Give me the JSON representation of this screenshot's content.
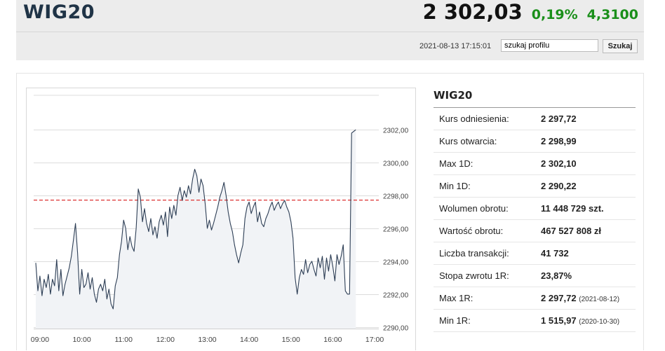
{
  "header": {
    "title": "WIG20",
    "price": "2 302,03",
    "change_pct": "0,19%",
    "change_abs": "4,3100",
    "datetime": "2021-08-13 17:15:01",
    "search_value": "szukaj profilu",
    "search_button": "Szukaj",
    "colors": {
      "positive": "#1a8f1a",
      "title": "#1f3346"
    }
  },
  "info": {
    "title": "WIG20",
    "rows": [
      {
        "label": "Kurs odniesienia:",
        "value": "2 297,72",
        "date": ""
      },
      {
        "label": "Kurs otwarcia:",
        "value": "2 298,99",
        "date": ""
      },
      {
        "label": "Max 1D:",
        "value": "2 302,10",
        "date": ""
      },
      {
        "label": "Min 1D:",
        "value": "2 290,22",
        "date": ""
      },
      {
        "label": "Wolumen obrotu:",
        "value": "11 448 729 szt.",
        "date": ""
      },
      {
        "label": "Wartość obrotu:",
        "value": "467 527 808 zł",
        "date": ""
      },
      {
        "label": "Liczba transakcji:",
        "value": "41 732",
        "date": ""
      },
      {
        "label": "Stopa zwrotu 1R:",
        "value": "23,87%",
        "date": ""
      },
      {
        "label": "Max 1R:",
        "value": "2 297,72",
        "date": "(2021-08-12)"
      },
      {
        "label": "Min 1R:",
        "value": "1 515,97",
        "date": "(2020-10-30)"
      }
    ]
  },
  "chart_data": {
    "type": "line",
    "title": "",
    "xlabel": "",
    "ylabel": "",
    "grid": true,
    "x_tick_labels": [
      "09:00",
      "10:00",
      "11:00",
      "12:00",
      "13:00",
      "14:00",
      "15:00",
      "16:00",
      "17:00"
    ],
    "x_tick_hours": [
      9,
      10,
      11,
      12,
      13,
      14,
      15,
      16,
      17
    ],
    "y_tick_labels": [
      "2302,00",
      "2300,00",
      "2298,00",
      "2296,00",
      "2294,00",
      "2292,00",
      "2290,00"
    ],
    "y_tick_values": [
      2302,
      2300,
      2298,
      2296,
      2294,
      2292,
      2290
    ],
    "xlim": [
      8.85,
      17.1
    ],
    "ylim": [
      2289.9,
      2304.1
    ],
    "reference_line": {
      "value": 2297.72,
      "color": "#d33",
      "style": "dashed"
    },
    "series": [
      {
        "color": "#2d3e55",
        "fill": "#f1f3f6",
        "points": [
          [
            8.9,
            2293.9
          ],
          [
            8.95,
            2292.2
          ],
          [
            9.0,
            2293.1
          ],
          [
            9.05,
            2291.9
          ],
          [
            9.1,
            2292.9
          ],
          [
            9.15,
            2292.4
          ],
          [
            9.2,
            2293.2
          ],
          [
            9.25,
            2292.0
          ],
          [
            9.3,
            2292.9
          ],
          [
            9.35,
            2292.5
          ],
          [
            9.4,
            2294.1
          ],
          [
            9.45,
            2292.2
          ],
          [
            9.5,
            2293.5
          ],
          [
            9.55,
            2291.9
          ],
          [
            9.6,
            2292.6
          ],
          [
            9.65,
            2293.1
          ],
          [
            9.7,
            2293.6
          ],
          [
            9.75,
            2294.3
          ],
          [
            9.8,
            2295.3
          ],
          [
            9.85,
            2296.3
          ],
          [
            9.9,
            2294.5
          ],
          [
            9.95,
            2292.0
          ],
          [
            10.0,
            2293.5
          ],
          [
            10.05,
            2292.4
          ],
          [
            10.1,
            2292.6
          ],
          [
            10.15,
            2293.3
          ],
          [
            10.2,
            2292.3
          ],
          [
            10.25,
            2293.0
          ],
          [
            10.3,
            2292.0
          ],
          [
            10.35,
            2291.5
          ],
          [
            10.4,
            2292.3
          ],
          [
            10.45,
            2292.6
          ],
          [
            10.5,
            2292.2
          ],
          [
            10.55,
            2292.9
          ],
          [
            10.6,
            2291.7
          ],
          [
            10.65,
            2292.3
          ],
          [
            10.7,
            2291.4
          ],
          [
            10.75,
            2291.1
          ],
          [
            10.8,
            2292.5
          ],
          [
            10.85,
            2293.0
          ],
          [
            10.9,
            2294.4
          ],
          [
            10.95,
            2295.2
          ],
          [
            11.0,
            2296.5
          ],
          [
            11.05,
            2296.0
          ],
          [
            11.1,
            2294.7
          ],
          [
            11.15,
            2295.5
          ],
          [
            11.2,
            2294.9
          ],
          [
            11.25,
            2294.6
          ],
          [
            11.3,
            2296.0
          ],
          [
            11.35,
            2298.4
          ],
          [
            11.4,
            2297.9
          ],
          [
            11.45,
            2296.4
          ],
          [
            11.5,
            2297.2
          ],
          [
            11.55,
            2296.3
          ],
          [
            11.6,
            2295.8
          ],
          [
            11.65,
            2296.6
          ],
          [
            11.7,
            2295.6
          ],
          [
            11.75,
            2296.1
          ],
          [
            11.8,
            2295.4
          ],
          [
            11.85,
            2296.4
          ],
          [
            11.9,
            2296.8
          ],
          [
            11.95,
            2296.2
          ],
          [
            12.0,
            2297.0
          ],
          [
            12.05,
            2295.5
          ],
          [
            12.1,
            2297.3
          ],
          [
            12.15,
            2296.6
          ],
          [
            12.2,
            2297.4
          ],
          [
            12.25,
            2296.8
          ],
          [
            12.3,
            2298.0
          ],
          [
            12.35,
            2298.5
          ],
          [
            12.4,
            2297.7
          ],
          [
            12.45,
            2298.3
          ],
          [
            12.5,
            2297.9
          ],
          [
            12.55,
            2298.6
          ],
          [
            12.6,
            2298.1
          ],
          [
            12.65,
            2299.0
          ],
          [
            12.7,
            2299.6
          ],
          [
            12.75,
            2299.2
          ],
          [
            12.8,
            2298.2
          ],
          [
            12.85,
            2299.0
          ],
          [
            12.9,
            2298.6
          ],
          [
            12.95,
            2297.5
          ],
          [
            13.0,
            2296.0
          ],
          [
            13.05,
            2296.5
          ],
          [
            13.1,
            2295.9
          ],
          [
            13.15,
            2296.3
          ],
          [
            13.2,
            2296.8
          ],
          [
            13.25,
            2297.3
          ],
          [
            13.3,
            2297.9
          ],
          [
            13.35,
            2298.3
          ],
          [
            13.4,
            2298.8
          ],
          [
            13.45,
            2298.0
          ],
          [
            13.5,
            2297.0
          ],
          [
            13.55,
            2296.3
          ],
          [
            13.6,
            2295.8
          ],
          [
            13.65,
            2295.0
          ],
          [
            13.7,
            2294.4
          ],
          [
            13.75,
            2293.9
          ],
          [
            13.8,
            2294.5
          ],
          [
            13.85,
            2295.0
          ],
          [
            13.9,
            2296.6
          ],
          [
            13.95,
            2297.3
          ],
          [
            14.0,
            2297.6
          ],
          [
            14.05,
            2296.9
          ],
          [
            14.1,
            2297.3
          ],
          [
            14.15,
            2297.6
          ],
          [
            14.2,
            2296.4
          ],
          [
            14.25,
            2297.0
          ],
          [
            14.3,
            2296.3
          ],
          [
            14.35,
            2296.1
          ],
          [
            14.4,
            2296.6
          ],
          [
            14.45,
            2296.9
          ],
          [
            14.5,
            2297.3
          ],
          [
            14.55,
            2297.6
          ],
          [
            14.6,
            2297.1
          ],
          [
            14.65,
            2297.4
          ],
          [
            14.7,
            2297.6
          ],
          [
            14.75,
            2297.2
          ],
          [
            14.8,
            2297.5
          ],
          [
            14.85,
            2297.7
          ],
          [
            14.9,
            2297.3
          ],
          [
            14.95,
            2297.0
          ],
          [
            15.0,
            2296.4
          ],
          [
            15.05,
            2295.4
          ],
          [
            15.1,
            2293.0
          ],
          [
            15.15,
            2292.0
          ],
          [
            15.2,
            2293.0
          ],
          [
            15.25,
            2293.5
          ],
          [
            15.3,
            2293.2
          ],
          [
            15.35,
            2294.1
          ],
          [
            15.4,
            2293.3
          ],
          [
            15.45,
            2293.8
          ],
          [
            15.5,
            2294.0
          ],
          [
            15.55,
            2293.5
          ],
          [
            15.6,
            2293.1
          ],
          [
            15.65,
            2294.2
          ],
          [
            15.7,
            2293.6
          ],
          [
            15.75,
            2294.3
          ],
          [
            15.8,
            2292.9
          ],
          [
            15.85,
            2294.2
          ],
          [
            15.9,
            2293.4
          ],
          [
            15.95,
            2294.4
          ],
          [
            16.0,
            2293.7
          ],
          [
            16.05,
            2292.8
          ],
          [
            16.1,
            2294.4
          ],
          [
            16.15,
            2293.8
          ],
          [
            16.2,
            2294.3
          ],
          [
            16.25,
            2295.0
          ],
          [
            16.3,
            2292.2
          ],
          [
            16.35,
            2292.0
          ],
          [
            16.4,
            2292.0
          ],
          [
            16.45,
            2301.8
          ],
          [
            16.55,
            2302.0
          ]
        ]
      }
    ]
  }
}
